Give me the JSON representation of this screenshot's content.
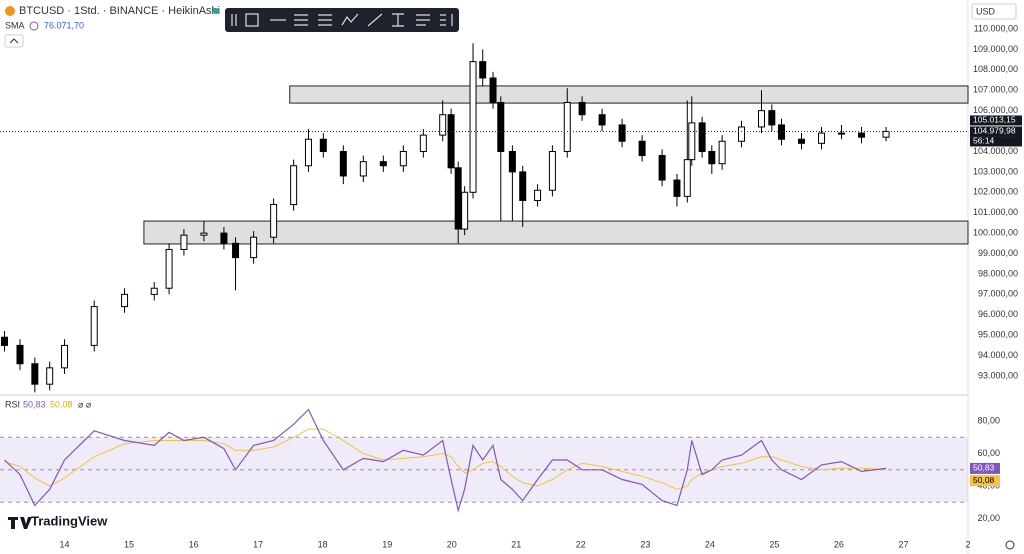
{
  "header": {
    "symbol": "BTCUSD · 1Std. · BINANCE · HeikinAshi",
    "sma_name": "SMA",
    "sma_value": "76.071,70",
    "currency": "USD",
    "rsi_name": "RSI",
    "rsi_value": "50,83",
    "rsi_sma_value": "50,08",
    "rsi_icons": "⌀ ⌀",
    "logo": "TradingView",
    "countdown": "56:14"
  },
  "chart_data": [
    {
      "type": "candlestick",
      "up_color": "#ffffff",
      "down_color": "#000000",
      "xlim": [
        13.0,
        28.0
      ],
      "ylim": [
        92070,
        111420
      ],
      "x": [
        13.07,
        13.31,
        13.54,
        13.77,
        14.0,
        14.46,
        14.93,
        15.39,
        15.62,
        15.85,
        16.16,
        16.47,
        16.65,
        16.93,
        17.24,
        17.55,
        17.78,
        18.01,
        18.32,
        18.63,
        18.94,
        19.25,
        19.56,
        19.86,
        19.99,
        20.1,
        20.2,
        20.33,
        20.48,
        20.64,
        20.76,
        20.94,
        21.1,
        21.33,
        21.56,
        21.79,
        22.02,
        22.33,
        22.64,
        22.95,
        23.26,
        23.49,
        23.65,
        23.72,
        23.88,
        24.03,
        24.19,
        24.49,
        24.8,
        24.96,
        25.11,
        25.42,
        25.73,
        26.04,
        26.35,
        26.73
      ],
      "open": [
        94900,
        94500,
        93600,
        92600,
        93400,
        94500,
        96400,
        97000,
        97300,
        99200,
        99900,
        100000,
        99500,
        98800,
        99800,
        101400,
        103300,
        104600,
        104000,
        102800,
        103500,
        103300,
        104000,
        104800,
        105800,
        103200,
        100200,
        102000,
        108400,
        107600,
        106400,
        104000,
        103000,
        101600,
        102100,
        104000,
        106400,
        105800,
        105300,
        104500,
        103800,
        102600,
        101800,
        103600,
        105400,
        104000,
        103400,
        104500,
        105200,
        106000,
        105300,
        104600,
        104400,
        104900,
        104900,
        104700
      ],
      "high": [
        95200,
        94800,
        93900,
        93700,
        94800,
        96700,
        97300,
        97600,
        99500,
        100200,
        100600,
        100300,
        99800,
        100100,
        101700,
        103600,
        105100,
        104900,
        104300,
        103800,
        103800,
        104300,
        105100,
        106500,
        106100,
        103500,
        102300,
        109300,
        109000,
        107900,
        106700,
        104300,
        103300,
        102400,
        104300,
        107100,
        106700,
        106100,
        105600,
        104800,
        104100,
        102900,
        106500,
        106700,
        105700,
        104300,
        104800,
        105500,
        107000,
        106300,
        105600,
        104900,
        105200,
        105300,
        105200,
        105200
      ],
      "low": [
        94200,
        93300,
        92200,
        92300,
        93100,
        94200,
        96100,
        96700,
        97000,
        98900,
        99600,
        99200,
        97200,
        98500,
        99500,
        101100,
        103000,
        103700,
        102400,
        102500,
        103000,
        103000,
        103700,
        104500,
        102900,
        99500,
        99900,
        101700,
        107200,
        106100,
        100600,
        100600,
        100300,
        101300,
        101800,
        103700,
        105500,
        105000,
        104200,
        103500,
        102300,
        101300,
        101500,
        103300,
        103700,
        102900,
        103100,
        104200,
        104900,
        105000,
        104300,
        104100,
        104100,
        104600,
        104400,
        104500
      ],
      "close": [
        94500,
        93600,
        92600,
        93400,
        94500,
        96400,
        97000,
        97300,
        99200,
        99900,
        100000,
        99500,
        98800,
        99800,
        101400,
        103300,
        104600,
        104000,
        102800,
        103500,
        103300,
        104000,
        104800,
        105800,
        103200,
        100200,
        102000,
        108400,
        107600,
        106400,
        104000,
        103000,
        101600,
        102100,
        104000,
        106400,
        105800,
        105300,
        104500,
        103800,
        102600,
        101800,
        103600,
        105400,
        104000,
        103400,
        104500,
        105200,
        106000,
        105300,
        104600,
        104400,
        104900,
        104900,
        104700,
        104980
      ],
      "zones": [
        {
          "x0": 17.49,
          "low": 106370,
          "high": 107210
        },
        {
          "x0": 15.23,
          "low": 99470,
          "high": 100590
        }
      ],
      "marks": [
        {
          "value": 105013.15,
          "label": "105.013,15"
        },
        {
          "value": 104979.98,
          "label": "104.979,98"
        }
      ],
      "yticks": [
        {
          "value": 110000,
          "label": "110.000,00"
        },
        {
          "value": 109000,
          "label": "109.000,00"
        },
        {
          "value": 108000,
          "label": "108.000,00"
        },
        {
          "value": 107000,
          "label": "107.000,00"
        },
        {
          "value": 106000,
          "label": "106.000,00"
        },
        {
          "value": 105000,
          "label": "105.000,00"
        },
        {
          "value": 104000,
          "label": "104.000,00"
        },
        {
          "value": 103000,
          "label": "103.000,00"
        },
        {
          "value": 102000,
          "label": "102.000,00"
        },
        {
          "value": 101000,
          "label": "101.000,00"
        },
        {
          "value": 100000,
          "label": "100.000,00"
        },
        {
          "value": 99000,
          "label": "99.000,00"
        },
        {
          "value": 98000,
          "label": "98.000,00"
        },
        {
          "value": 97000,
          "label": "97.000,00"
        },
        {
          "value": 96000,
          "label": "96.000,00"
        },
        {
          "value": 95000,
          "label": "95.000,00"
        },
        {
          "value": 94000,
          "label": "94.000,00"
        },
        {
          "value": 93000,
          "label": "93.000,00"
        }
      ]
    },
    {
      "type": "line",
      "xlim": [
        13.0,
        28.0
      ],
      "ylim": [
        3.7,
        96
      ],
      "levels": [
        70,
        50,
        30
      ],
      "x": [
        13.07,
        13.31,
        13.54,
        13.77,
        14.0,
        14.46,
        14.93,
        15.39,
        15.62,
        15.85,
        16.16,
        16.47,
        16.65,
        16.93,
        17.24,
        17.55,
        17.78,
        18.01,
        18.32,
        18.63,
        18.94,
        19.25,
        19.56,
        19.86,
        19.99,
        20.1,
        20.2,
        20.33,
        20.48,
        20.64,
        20.76,
        20.94,
        21.1,
        21.33,
        21.56,
        21.79,
        22.02,
        22.33,
        22.64,
        22.95,
        23.26,
        23.49,
        23.65,
        23.72,
        23.88,
        24.03,
        24.19,
        24.49,
        24.8,
        24.96,
        25.11,
        25.42,
        25.73,
        26.04,
        26.35,
        26.73
      ],
      "series": [
        {
          "color": "#7e57c2",
          "last_label": "50,83",
          "values": [
            56,
            47,
            28,
            38,
            56,
            74,
            68,
            65,
            73,
            68,
            70,
            63,
            50,
            65,
            68,
            78,
            87,
            68,
            50,
            57,
            55,
            62,
            59,
            68,
            44,
            25,
            38,
            65,
            56,
            65,
            44,
            38,
            31,
            44,
            56,
            56,
            50,
            50,
            44,
            41,
            31,
            28,
            50,
            68,
            47,
            50,
            56,
            59,
            68,
            56,
            50,
            44,
            53,
            55,
            49,
            50.83
          ]
        },
        {
          "color": "#f5c242",
          "last_label": "50,08",
          "values": [
            55,
            52,
            45,
            40,
            45,
            58,
            66,
            68,
            68,
            68,
            68,
            66,
            62,
            62,
            64,
            70,
            75,
            75,
            68,
            60,
            56,
            57,
            58,
            60,
            58,
            52,
            48,
            50,
            54,
            55,
            52,
            46,
            42,
            40,
            44,
            50,
            54,
            52,
            49,
            46,
            42,
            38,
            40,
            44,
            48,
            50,
            52,
            54,
            58,
            58,
            56,
            52,
            50,
            51,
            51,
            50.08
          ]
        }
      ],
      "yticks": [
        {
          "value": 80,
          "label": "80,00"
        },
        {
          "value": 60,
          "label": "60,00"
        },
        {
          "value": 40,
          "label": "40,00"
        },
        {
          "value": 20,
          "label": "20,00"
        }
      ],
      "xticks": [
        14,
        15,
        16,
        17,
        18,
        19,
        20,
        21,
        22,
        23,
        24,
        25,
        26,
        27,
        {
          "value": 28,
          "label": "2"
        }
      ]
    }
  ]
}
